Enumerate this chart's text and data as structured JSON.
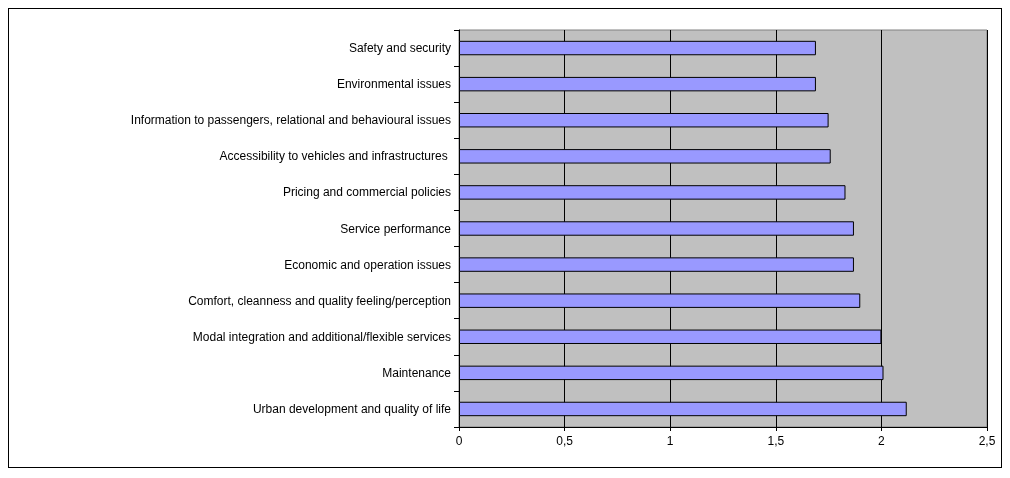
{
  "chart_data": {
    "type": "bar",
    "orientation": "horizontal",
    "categories": [
      "Safety and security",
      "Environmental issues",
      "Information to passengers, relational and behavioural issues",
      "Accessibility to vehicles and infrastructures ",
      "Pricing and commercial policies",
      "Service performance",
      "Economic and operation issues",
      "Comfort, cleanness and quality feeling/perception",
      "Modal integration and additional/flexible services",
      "Maintenance",
      "Urban development and quality of life"
    ],
    "values": [
      1.69,
      1.69,
      1.75,
      1.76,
      1.83,
      1.87,
      1.87,
      1.9,
      2.0,
      2.01,
      2.12
    ],
    "color": "#9999ff",
    "xlim": [
      0,
      2.5
    ],
    "xticks": [
      0,
      {
        "value": 0.5,
        "label": "0,5"
      },
      1,
      {
        "value": 1.5,
        "label": "1,5"
      },
      2,
      {
        "value": 2.5,
        "label": "2,5"
      }
    ],
    "grid": "x"
  }
}
